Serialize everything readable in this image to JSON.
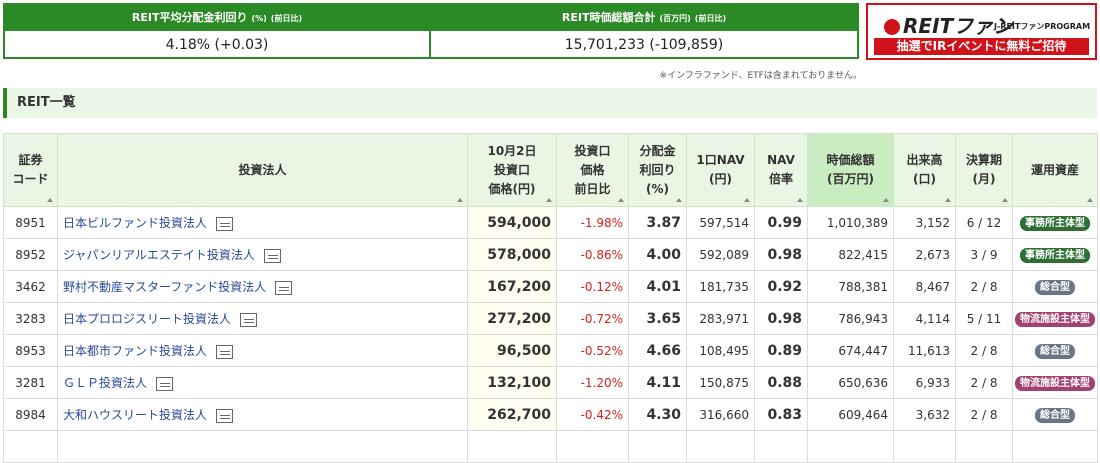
{
  "summary": [
    {
      "label": "REIT平均分配金利回り",
      "unit": "(%)",
      "note": "(前日比)",
      "value": "4.18% (+0.03)"
    },
    {
      "label": "REIT時価総額合計",
      "unit": "(百万円)",
      "note": "(前日比)",
      "value": "15,701,233 (-109,859)"
    }
  ],
  "banner": {
    "logo": "REITファン",
    "program": "J-REITファンPROGRAM",
    "campaign": "抽選でIRイベントに無料ご招待"
  },
  "note": "※インフラファンド、ETFは含まれておりません。",
  "section_title": "REIT一覧",
  "table": {
    "columns": [
      [
        "証券",
        "コード"
      ],
      [
        "投資法人"
      ],
      [
        "10月2日",
        "投資口",
        "価格(円)"
      ],
      [
        "投資口",
        "価格",
        "前日比"
      ],
      [
        "分配金",
        "利回り",
        "(%)"
      ],
      [
        "1口NAV",
        "(円)"
      ],
      [
        "NAV",
        "倍率"
      ],
      [
        "時価総額",
        "(百万円)"
      ],
      [
        "出来高",
        "(口)"
      ],
      [
        "決算期",
        "(月)"
      ],
      [
        "運用資産"
      ]
    ],
    "rows": [
      [
        "8951",
        "日本ビルファンド投資法人",
        "594,000",
        "-1.98%",
        "3.87",
        "597,514",
        "0.99",
        "1,010,389",
        "3,152",
        "6 / 12",
        {
          "label": "事務所主体型",
          "color": "#2f6e35"
        }
      ],
      [
        "8952",
        "ジャパンリアルエステイト投資法人",
        "578,000",
        "-0.86%",
        "4.00",
        "592,089",
        "0.98",
        "822,415",
        "2,673",
        "3 / 9",
        {
          "label": "事務所主体型",
          "color": "#2f6e35"
        }
      ],
      [
        "3462",
        "野村不動産マスターファンド投資法人",
        "167,200",
        "-0.12%",
        "4.01",
        "181,735",
        "0.92",
        "788,381",
        "8,467",
        "2 / 8",
        {
          "label": "総合型",
          "color": "#6b7684"
        }
      ],
      [
        "3283",
        "日本プロロジスリート投資法人",
        "277,200",
        "-0.72%",
        "3.65",
        "283,971",
        "0.98",
        "786,943",
        "4,114",
        "5 / 11",
        {
          "label": "物流施設主体型",
          "color": "#a3416f"
        }
      ],
      [
        "8953",
        "日本都市ファンド投資法人",
        "96,500",
        "-0.52%",
        "4.66",
        "108,495",
        "0.89",
        "674,447",
        "11,613",
        "2 / 8",
        {
          "label": "総合型",
          "color": "#6b7684"
        }
      ],
      [
        "3281",
        "ＧＬＰ投資法人",
        "132,100",
        "-1.20%",
        "4.11",
        "150,875",
        "0.88",
        "650,636",
        "6,933",
        "2 / 8",
        {
          "label": "物流施設主体型",
          "color": "#a3416f"
        }
      ],
      [
        "8984",
        "大和ハウスリート投資法人",
        "262,700",
        "-0.42%",
        "4.30",
        "316,660",
        "0.83",
        "609,464",
        "3,632",
        "2 / 8",
        {
          "label": "総合型",
          "color": "#6b7684"
        }
      ]
    ]
  }
}
